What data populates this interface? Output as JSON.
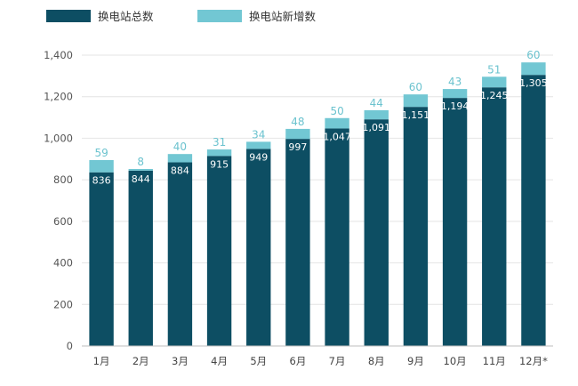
{
  "chart_data": {
    "type": "bar",
    "stacked": true,
    "categories": [
      "1月",
      "2月",
      "3月",
      "4月",
      "5月",
      "6月",
      "7月",
      "8月",
      "9月",
      "10月",
      "11月",
      "12月*"
    ],
    "series": [
      {
        "name": "换电站总数",
        "color": "#0d4e63",
        "values": [
          836,
          844,
          884,
          915,
          949,
          997,
          1047,
          1091,
          1151,
          1194,
          1245,
          1305
        ],
        "labels": [
          "836",
          "844",
          "884",
          "915",
          "949",
          "997",
          "1,047",
          "1,091",
          "1,151",
          "1,194",
          "1,245",
          "1,305"
        ]
      },
      {
        "name": "换电站新增数",
        "color": "#72c7d3",
        "values": [
          59,
          8,
          40,
          31,
          34,
          48,
          50,
          44,
          60,
          43,
          51,
          60
        ],
        "labels": [
          "59",
          "8",
          "40",
          "31",
          "34",
          "48",
          "50",
          "44",
          "60",
          "43",
          "51",
          "60"
        ]
      }
    ],
    "yticks": [
      "0",
      "200",
      "400",
      "600",
      "800",
      "1,000",
      "1,200",
      "1,400"
    ],
    "ylim": [
      0,
      1400
    ],
    "grid": true,
    "legend_position": "top-left"
  }
}
